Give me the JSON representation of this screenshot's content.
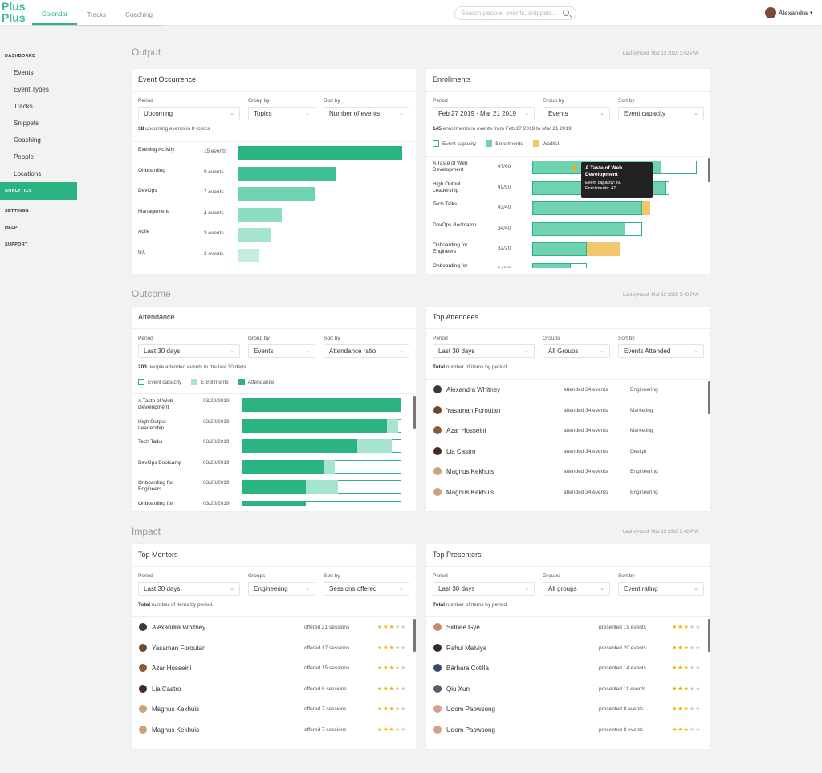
{
  "logo": {
    "line1": "Plus",
    "line2": "Plus"
  },
  "nav": {
    "tabs": [
      {
        "label": "Calendar"
      },
      {
        "label": "Tracks"
      },
      {
        "label": "Coaching"
      }
    ]
  },
  "search": {
    "placeholder": "Search people, events, snippets...",
    "icon": "search-icon"
  },
  "user": {
    "name": "Alexandra",
    "icon": "chevron-down-icon"
  },
  "sidebar": {
    "dashboard": "DASHBOARD",
    "items": [
      "Events",
      "Event Types",
      "Tracks",
      "Snippets",
      "Coaching",
      "People",
      "Locations"
    ],
    "analytics": "ANALYTICS",
    "settings": "SETTINGS",
    "help": "HELP",
    "support": "SUPPORT"
  },
  "colors": {
    "accent": "#2bb381",
    "enroll": "#6fd3b0",
    "attend": "#2bb381",
    "waitlist": "#f2c66d"
  },
  "output": {
    "title": "Output",
    "synced": "Last synced: Mar 13 2019 3:42 PM",
    "event_occurrence": {
      "title": "Event Occurrence",
      "filters": [
        {
          "label": "Period",
          "value": "Upcoming"
        },
        {
          "label": "Group by",
          "value": "Topics"
        },
        {
          "label": "Sort by",
          "value": "Number of events"
        }
      ],
      "summary_count": "38",
      "summary_text": " upcoming events in 8 topics",
      "rows": [
        {
          "label": "Evening Activity",
          "count": "15 events",
          "value": 15
        },
        {
          "label": "Onboarding",
          "count": "9 events",
          "value": 9
        },
        {
          "label": "DevOps",
          "count": "7 events",
          "value": 7
        },
        {
          "label": "Management",
          "count": "4 events",
          "value": 4
        },
        {
          "label": "Agile",
          "count": "3 events",
          "value": 3
        },
        {
          "label": "UX",
          "count": "2 events",
          "value": 2
        }
      ]
    },
    "enrollments": {
      "title": "Enrollments",
      "filters": [
        {
          "label": "Period",
          "value": "Feb 27 2019 - Mar 21 2019"
        },
        {
          "label": "Group by",
          "value": "Events"
        },
        {
          "label": "Sort by",
          "value": "Event capacity"
        }
      ],
      "summary_count": "145",
      "summary_text": " enrollments in events from Feb 27 2019 to Mar 21 2019.",
      "legend": [
        "Event capacity",
        "Enrollments",
        "Waitlist"
      ],
      "rows": [
        {
          "label1": "A Taste of Web",
          "label2": "Development",
          "count": "47/60",
          "enroll": 47,
          "cap": 60
        },
        {
          "label1": "High Output",
          "label2": "Leadership",
          "count": "49/50",
          "enroll": 49,
          "cap": 50
        },
        {
          "label1": "Tech Talks",
          "label2": "",
          "count": "43/40",
          "enroll": 43,
          "cap": 40
        },
        {
          "label1": "DevOps Bootcamp",
          "label2": "",
          "count": "34/40",
          "enroll": 34,
          "cap": 40
        },
        {
          "label1": "Onboarding for",
          "label2": "Engineers",
          "count": "32/20",
          "enroll": 32,
          "cap": 20
        },
        {
          "label1": "Onboarding for",
          "label2": "",
          "count": "14/20",
          "enroll": 14,
          "cap": 20
        }
      ],
      "tooltip": {
        "title1": "A Taste of Web",
        "title2": "Development",
        "cap": "Event capacity: 60",
        "enroll": "Enrollments: 47"
      }
    }
  },
  "outcome": {
    "title": "Outcome",
    "synced": "Last synced: Mar 13 2019 3:42 PM",
    "attendance": {
      "title": "Attendance",
      "filters": [
        {
          "label": "Period",
          "value": "Last 30 days"
        },
        {
          "label": "Group by",
          "value": "Events"
        },
        {
          "label": "Sort by",
          "value": "Attendance ratio"
        }
      ],
      "summary_count": "203",
      "summary_text": " people attended events in the last 30 days.",
      "legend": [
        "Event capacity",
        "Enrollments",
        "Attendance"
      ],
      "rows": [
        {
          "label1": "A Taste of Web",
          "label2": "Development",
          "date": "03/20/2019",
          "attend": 1.0,
          "enroll": 1.0
        },
        {
          "label1": "High Output",
          "label2": "Leadership",
          "date": "03/20/2019",
          "attend": 0.91,
          "enroll": 0.98
        },
        {
          "label1": "Tech Talks",
          "label2": "",
          "date": "03/20/2019",
          "attend": 0.72,
          "enroll": 0.94
        },
        {
          "label1": "DevOps Bootcamp",
          "label2": "",
          "date": "03/20/2019",
          "attend": 0.51,
          "enroll": 0.58
        },
        {
          "label1": "Onboarding for",
          "label2": "Engineers",
          "date": "03/20/2019",
          "attend": 0.4,
          "enroll": 0.6
        },
        {
          "label1": "Onboarding for",
          "label2": "",
          "date": "03/20/2019",
          "attend": 0.4,
          "enroll": 0.4
        }
      ]
    },
    "top_attendees": {
      "title": "Top Attendees",
      "filters": [
        {
          "label": "Period",
          "value": "Last 30 days"
        },
        {
          "label": "Groups",
          "value": "All Groups"
        },
        {
          "label": "Sort by",
          "value": "Events Attended"
        }
      ],
      "summary_bold": "Total",
      "summary_text": " number of items by period.",
      "people": [
        {
          "name": "Alexandra Whitney",
          "stat": "attended 34 events",
          "group": "Engineering",
          "color": "#3a3a3a"
        },
        {
          "name": "Yasaman Foroutan",
          "stat": "attended 34 events",
          "group": "Marketing",
          "color": "#6b4a2f"
        },
        {
          "name": "Azar Hosseini",
          "stat": "attended 34 events",
          "group": "Marketing",
          "color": "#8a5a3a"
        },
        {
          "name": "Lia Castro",
          "stat": "attended 34 events",
          "group": "Design",
          "color": "#4a2a20"
        },
        {
          "name": "Magnus Kekhuis",
          "stat": "attended 34 events",
          "group": "Engineering",
          "color": "#c9a27a"
        },
        {
          "name": "Magnus Kekhuis",
          "stat": "attended 34 events",
          "group": "Engineering",
          "color": "#c9a27a"
        }
      ]
    }
  },
  "impact": {
    "title": "Impact",
    "synced": "Last synced: Mar 13 2019 3:42 PM",
    "top_mentors": {
      "title": "Top Mentors",
      "filters": [
        {
          "label": "Period",
          "value": "Last 30 days"
        },
        {
          "label": "Groups",
          "value": "Engineering"
        },
        {
          "label": "Sort by",
          "value": "Sessions offered"
        }
      ],
      "summary_bold": "Total",
      "summary_text": " number of items by period.",
      "people": [
        {
          "name": "Alexandra Whitney",
          "stat": "offered 21 sessions",
          "rating": 3,
          "color": "#3a3a3a"
        },
        {
          "name": "Yasaman Foroutan",
          "stat": "offered 17 sessions",
          "rating": 3,
          "color": "#6b4a2f"
        },
        {
          "name": "Azar Hosseini",
          "stat": "offered 15 sessions",
          "rating": 3,
          "color": "#8a5a3a"
        },
        {
          "name": "Lia Castro",
          "stat": "offered 8 sessions",
          "rating": 3,
          "color": "#4a2a20"
        },
        {
          "name": "Magnus Kekhuis",
          "stat": "offered 7 sessions",
          "rating": 3,
          "color": "#c9a27a"
        },
        {
          "name": "Magnus Kekhuis",
          "stat": "offered 7 sessions",
          "rating": 3,
          "color": "#c9a27a"
        }
      ]
    },
    "top_presenters": {
      "title": "Top Presenters",
      "filters": [
        {
          "label": "Period",
          "value": "Last 30 days"
        },
        {
          "label": "Groups",
          "value": "All groups"
        },
        {
          "label": "Sort by",
          "value": "Event rating"
        }
      ],
      "summary_bold": "Total",
      "summary_text": " number of items by period.",
      "people": [
        {
          "name": "Sidnee Gye",
          "stat": "presented 19 events",
          "rating": 3,
          "color": "#c88a6a"
        },
        {
          "name": "Rahul Malviya",
          "stat": "presented 20 events",
          "rating": 3,
          "color": "#3a2a2a"
        },
        {
          "name": "Bárbara Cotilla",
          "stat": "presented 14 events",
          "rating": 3,
          "color": "#3a4a6a"
        },
        {
          "name": "Qiu Xun",
          "stat": "presented 11 events",
          "rating": 3,
          "color": "#5a5a6a"
        },
        {
          "name": "Udom Paowsong",
          "stat": "presented 8 events",
          "rating": 3,
          "color": "#d6a090"
        },
        {
          "name": "Udom Paowsong",
          "stat": "presented 8 events",
          "rating": 3,
          "color": "#d6a090"
        }
      ]
    }
  }
}
